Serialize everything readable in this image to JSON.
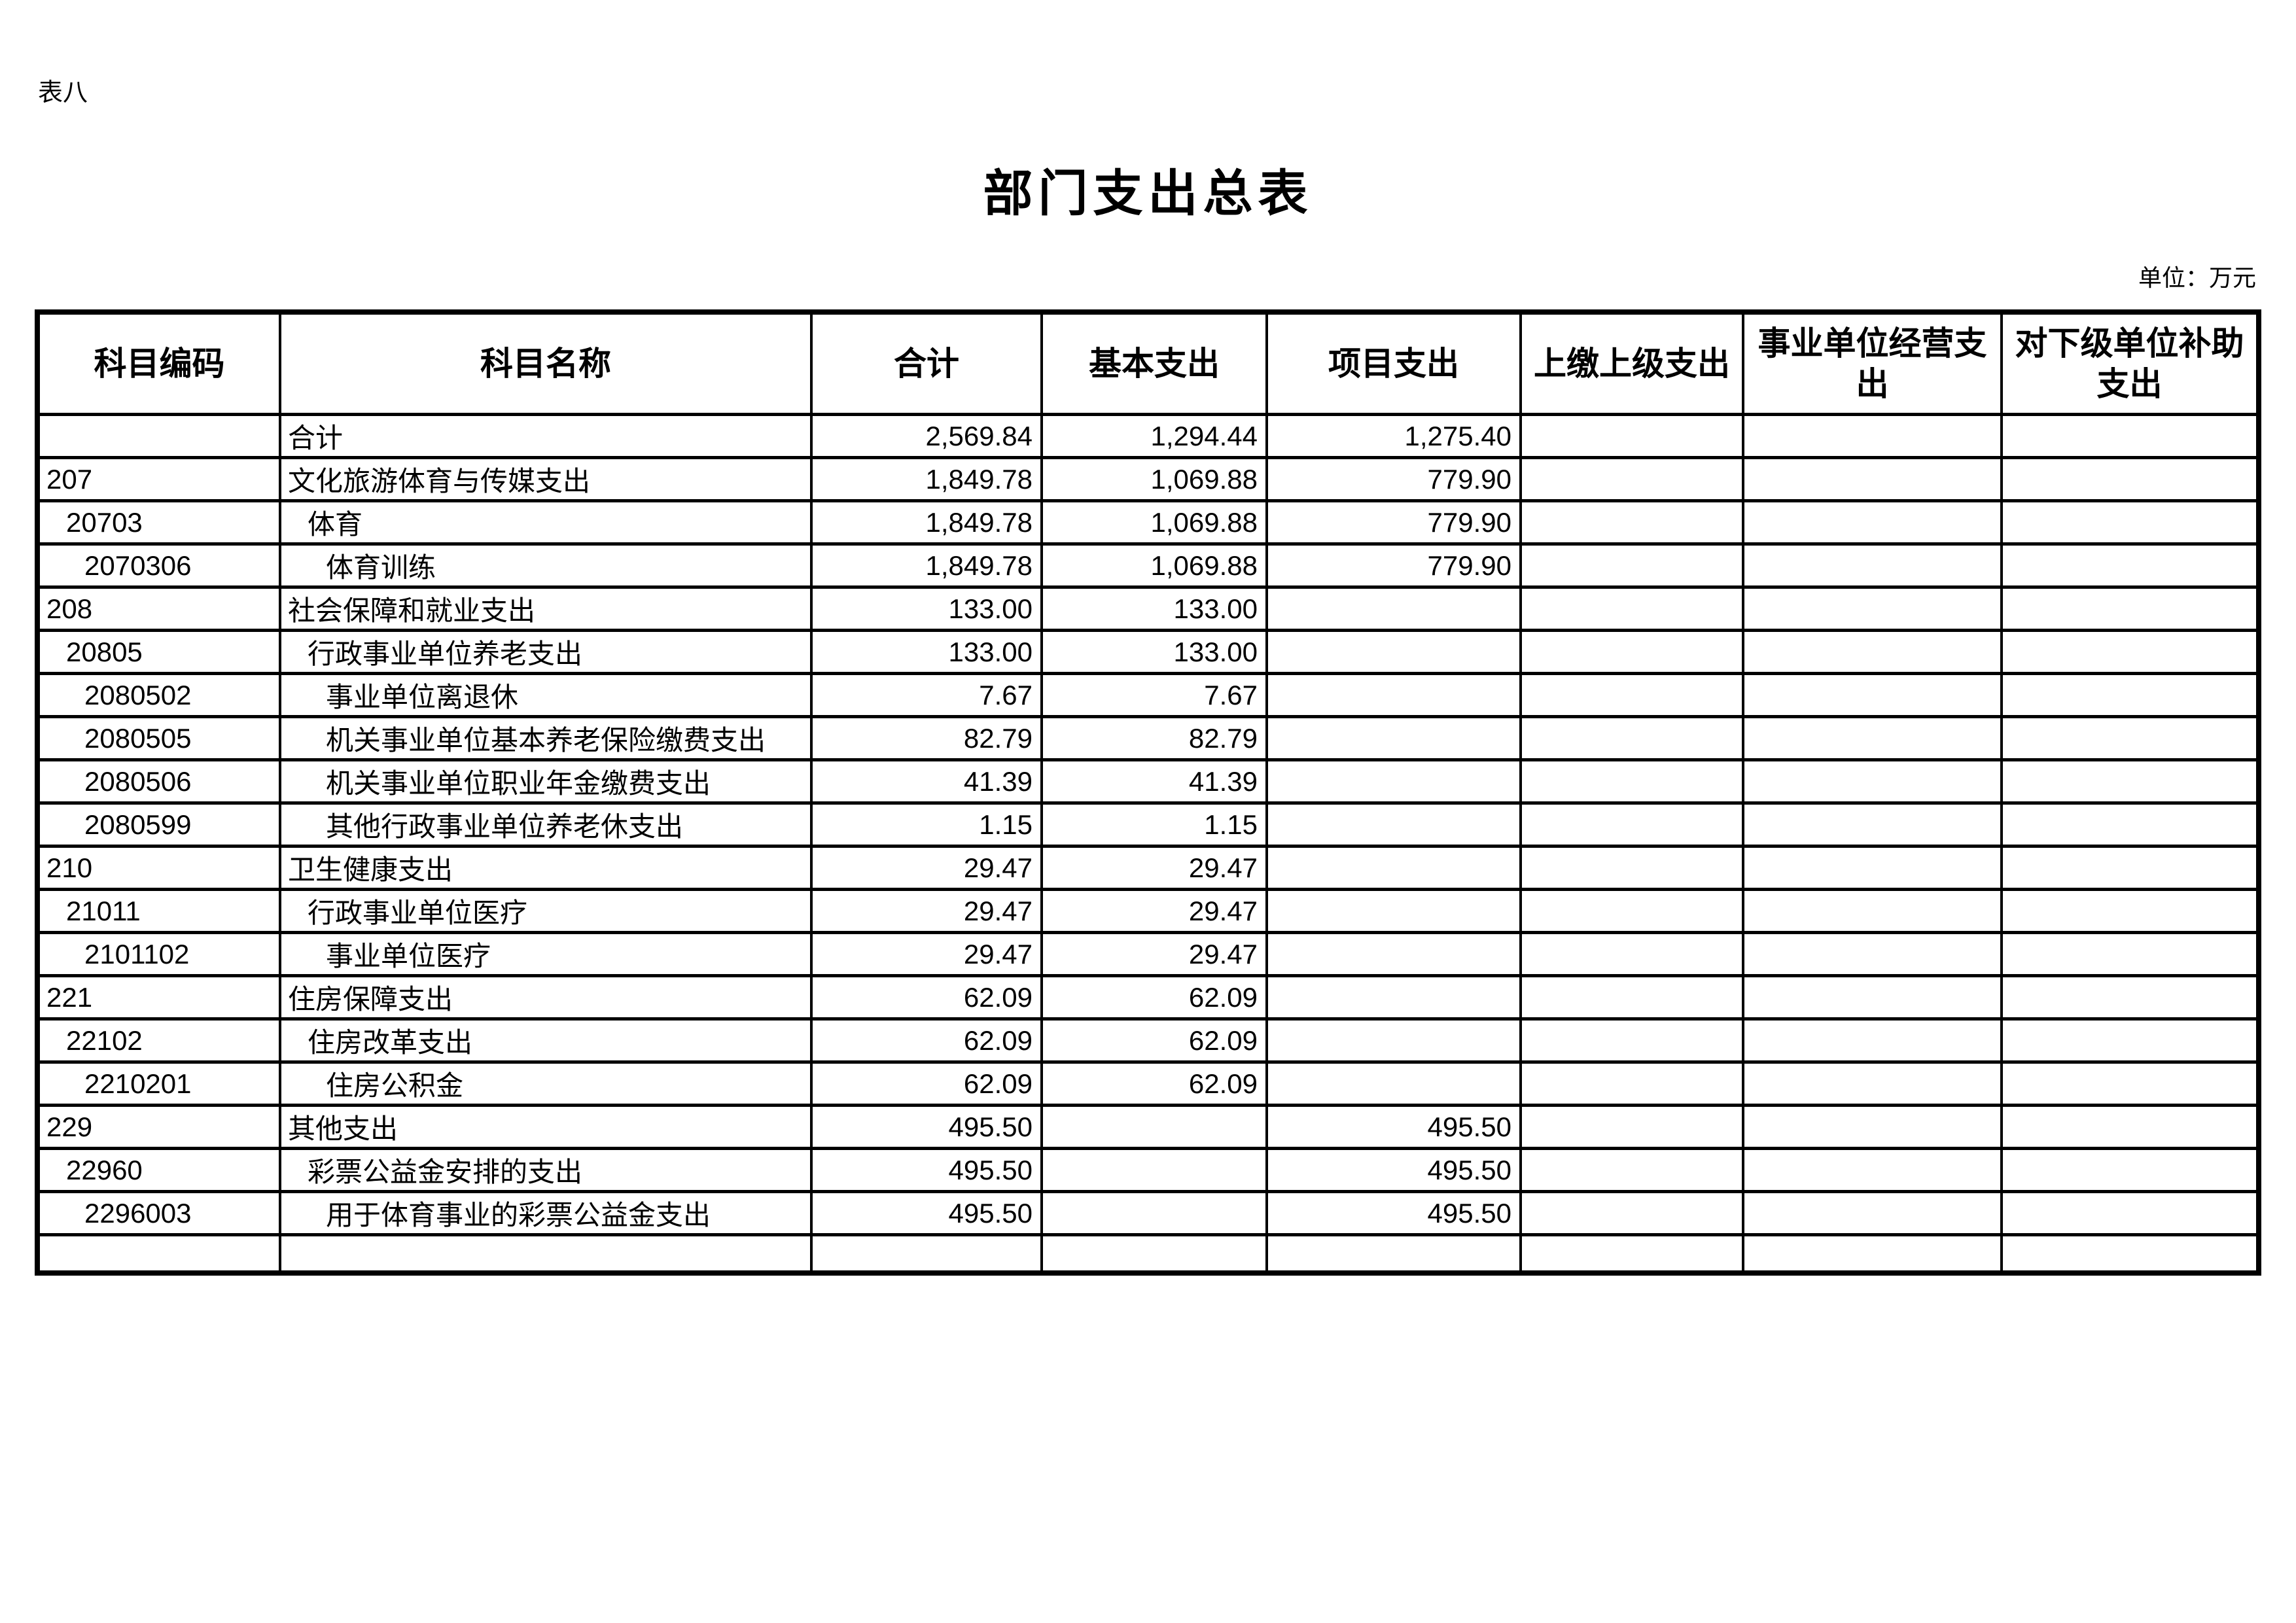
{
  "page": {
    "sheet_label": "表八",
    "title": "部门支出总表",
    "unit_note": "单位：万元"
  },
  "table": {
    "columns": [
      "科目编码",
      "科目名称",
      "合计",
      "基本支出",
      "项目支出",
      "上缴上级支出",
      "事业单位经营支出",
      "对下级单位补助支出"
    ],
    "rows": [
      {
        "indent": 0,
        "code": "",
        "name": "合计",
        "total": "2,569.84",
        "basic": "1,294.44",
        "project": "1,275.40",
        "upper": "",
        "operating": "",
        "subsidy": ""
      },
      {
        "indent": 0,
        "code": "207",
        "name": "文化旅游体育与传媒支出",
        "total": "1,849.78",
        "basic": "1,069.88",
        "project": "779.90",
        "upper": "",
        "operating": "",
        "subsidy": ""
      },
      {
        "indent": 1,
        "code": "20703",
        "name": "体育",
        "total": "1,849.78",
        "basic": "1,069.88",
        "project": "779.90",
        "upper": "",
        "operating": "",
        "subsidy": ""
      },
      {
        "indent": 2,
        "code": "2070306",
        "name": "体育训练",
        "total": "1,849.78",
        "basic": "1,069.88",
        "project": "779.90",
        "upper": "",
        "operating": "",
        "subsidy": ""
      },
      {
        "indent": 0,
        "code": "208",
        "name": "社会保障和就业支出",
        "total": "133.00",
        "basic": "133.00",
        "project": "",
        "upper": "",
        "operating": "",
        "subsidy": ""
      },
      {
        "indent": 1,
        "code": "20805",
        "name": "行政事业单位养老支出",
        "total": "133.00",
        "basic": "133.00",
        "project": "",
        "upper": "",
        "operating": "",
        "subsidy": ""
      },
      {
        "indent": 2,
        "code": "2080502",
        "name": "事业单位离退休",
        "total": "7.67",
        "basic": "7.67",
        "project": "",
        "upper": "",
        "operating": "",
        "subsidy": ""
      },
      {
        "indent": 2,
        "code": "2080505",
        "name": "机关事业单位基本养老保险缴费支出",
        "total": "82.79",
        "basic": "82.79",
        "project": "",
        "upper": "",
        "operating": "",
        "subsidy": ""
      },
      {
        "indent": 2,
        "code": "2080506",
        "name": "机关事业单位职业年金缴费支出",
        "total": "41.39",
        "basic": "41.39",
        "project": "",
        "upper": "",
        "operating": "",
        "subsidy": ""
      },
      {
        "indent": 2,
        "code": "2080599",
        "name": "其他行政事业单位养老休支出",
        "total": "1.15",
        "basic": "1.15",
        "project": "",
        "upper": "",
        "operating": "",
        "subsidy": ""
      },
      {
        "indent": 0,
        "code": "210",
        "name": "卫生健康支出",
        "total": "29.47",
        "basic": "29.47",
        "project": "",
        "upper": "",
        "operating": "",
        "subsidy": ""
      },
      {
        "indent": 1,
        "code": "21011",
        "name": "行政事业单位医疗",
        "total": "29.47",
        "basic": "29.47",
        "project": "",
        "upper": "",
        "operating": "",
        "subsidy": ""
      },
      {
        "indent": 2,
        "code": "2101102",
        "name": "事业单位医疗",
        "total": "29.47",
        "basic": "29.47",
        "project": "",
        "upper": "",
        "operating": "",
        "subsidy": ""
      },
      {
        "indent": 0,
        "code": "221",
        "name": "住房保障支出",
        "total": "62.09",
        "basic": "62.09",
        "project": "",
        "upper": "",
        "operating": "",
        "subsidy": ""
      },
      {
        "indent": 1,
        "code": "22102",
        "name": "住房改革支出",
        "total": "62.09",
        "basic": "62.09",
        "project": "",
        "upper": "",
        "operating": "",
        "subsidy": ""
      },
      {
        "indent": 2,
        "code": "2210201",
        "name": "住房公积金",
        "total": "62.09",
        "basic": "62.09",
        "project": "",
        "upper": "",
        "operating": "",
        "subsidy": ""
      },
      {
        "indent": 0,
        "code": "229",
        "name": "其他支出",
        "total": "495.50",
        "basic": "",
        "project": "495.50",
        "upper": "",
        "operating": "",
        "subsidy": ""
      },
      {
        "indent": 1,
        "code": "22960",
        "name": "彩票公益金安排的支出",
        "total": "495.50",
        "basic": "",
        "project": "495.50",
        "upper": "",
        "operating": "",
        "subsidy": ""
      },
      {
        "indent": 2,
        "code": "2296003",
        "name": "用于体育事业的彩票公益金支出",
        "total": "495.50",
        "basic": "",
        "project": "495.50",
        "upper": "",
        "operating": "",
        "subsidy": ""
      },
      {
        "indent": 0,
        "code": "",
        "name": "",
        "total": "",
        "basic": "",
        "project": "",
        "upper": "",
        "operating": "",
        "subsidy": ""
      }
    ]
  }
}
